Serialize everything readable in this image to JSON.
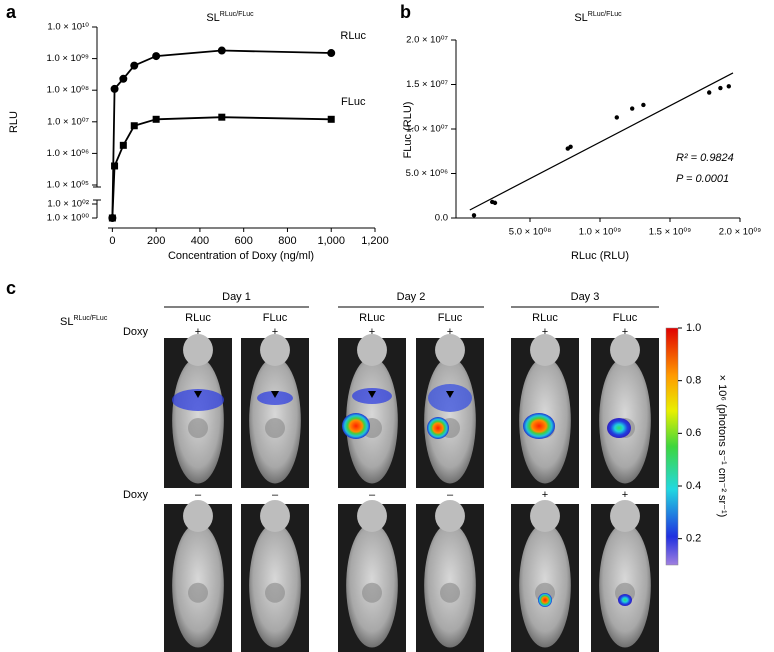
{
  "chart_data": [
    {
      "type": "line",
      "panel": "a",
      "title": {
        "text": "SL",
        "sup": "RLuc/FLuc"
      },
      "x_label": "Concentration of Doxy (ng/ml)",
      "y_label": "RLU",
      "log_y": true,
      "ybreak": [
        100,
        100000
      ],
      "x": [
        0,
        10,
        50,
        100,
        200,
        500,
        1000
      ],
      "series": [
        {
          "name": "RLuc",
          "color": "#000000",
          "marker": "circle",
          "values": [
            1,
            110000000,
            230000000,
            600000000,
            1200000000,
            1800000000,
            1500000000
          ]
        },
        {
          "name": "FLuc",
          "color": "#000000",
          "marker": "square",
          "values": [
            1,
            400000,
            1800000,
            7500000,
            12000000,
            14000000,
            12000000
          ]
        }
      ],
      "xlim": [
        -20,
        1200
      ],
      "xticks": [
        0,
        200,
        400,
        600,
        800,
        {
          "value": 1000,
          "label": "1,000"
        },
        {
          "value": 1200,
          "label": "1,200"
        }
      ],
      "ylim": [
        1,
        10000000000
      ],
      "yticks": [
        {
          "value": 1,
          "label": "1.0 × 10⁰⁰"
        },
        {
          "value": 100,
          "label": "1.0 × 10⁰²"
        },
        {
          "value": 100000,
          "label": "1.0 × 10⁰⁵"
        },
        {
          "value": 1000000,
          "label": "1.0 × 10⁰⁶"
        },
        {
          "value": 10000000,
          "label": "1.0 × 10⁰⁷"
        },
        {
          "value": 100000000,
          "label": "1.0 × 10⁰⁸"
        },
        {
          "value": 1000000000,
          "label": "1.0 × 10⁰⁹"
        },
        {
          "value": 10000000000,
          "label": "1.0 × 10¹⁰"
        }
      ]
    },
    {
      "type": "scatter",
      "panel": "b",
      "title": {
        "text": "SL",
        "sup": "RLuc/FLuc"
      },
      "x_label": "RLuc (RLU)",
      "y_label": "FLuc (RLU)",
      "color": "#000000",
      "x": [
        100000000,
        230000000,
        250000000,
        770000000,
        790000000,
        1120000000,
        1230000000,
        1310000000,
        1780000000,
        1860000000,
        1920000000
      ],
      "values": [
        300000,
        1800000,
        1700000,
        7800000,
        8000000,
        11300000,
        12300000,
        12700000,
        14100000,
        14600000,
        14800000
      ],
      "fit_line": {
        "x": [
          70000000,
          1950000000
        ],
        "y": [
          900000,
          16300000
        ]
      },
      "annotations": [
        "R² = 0.9824",
        "P = 0.0001"
      ],
      "xlim": [
        0,
        2000000000
      ],
      "xticks": [
        {
          "value": 500000000,
          "label": "5.0 × 10⁰⁸"
        },
        {
          "value": 1000000000,
          "label": "1.0 × 10⁰⁹"
        },
        {
          "value": 1500000000,
          "label": "1.5 × 10⁰⁹"
        },
        {
          "value": 2000000000,
          "label": "2.0 × 10⁰⁹"
        }
      ],
      "ylim": [
        0,
        20000000
      ],
      "yticks": [
        {
          "value": 0,
          "label": "0.0"
        },
        {
          "value": 5000000,
          "label": "5.0 × 10⁰⁶"
        },
        {
          "value": 10000000,
          "label": "1.0 × 10⁰⁷"
        },
        {
          "value": 15000000,
          "label": "1.5 × 10⁰⁷"
        },
        {
          "value": 20000000,
          "label": "2.0 × 10⁰⁷"
        }
      ]
    }
  ],
  "image_panel": {
    "panel": "c",
    "title": {
      "text": "SL",
      "sup": "RLuc/FLuc"
    },
    "days": [
      "Day 1",
      "Day 2",
      "Day 3"
    ],
    "channels": [
      "RLuc",
      "FLuc",
      "RLuc",
      "FLuc",
      "RLuc",
      "FLuc"
    ],
    "treatment": "Doxy",
    "rows": [
      [
        "+",
        "+",
        "+",
        "+",
        "+",
        "+"
      ],
      [
        "–",
        "–",
        "–",
        "–",
        "+",
        "+"
      ]
    ],
    "colorbar": {
      "lim": [
        0.1,
        1
      ],
      "ticks": [
        0.2,
        0.4,
        0.6,
        0.8,
        {
          "value": 1,
          "label": "1.0"
        }
      ],
      "label": "× 10⁶ (photons s⁻¹ cm⁻² sr⁻¹)"
    }
  }
}
